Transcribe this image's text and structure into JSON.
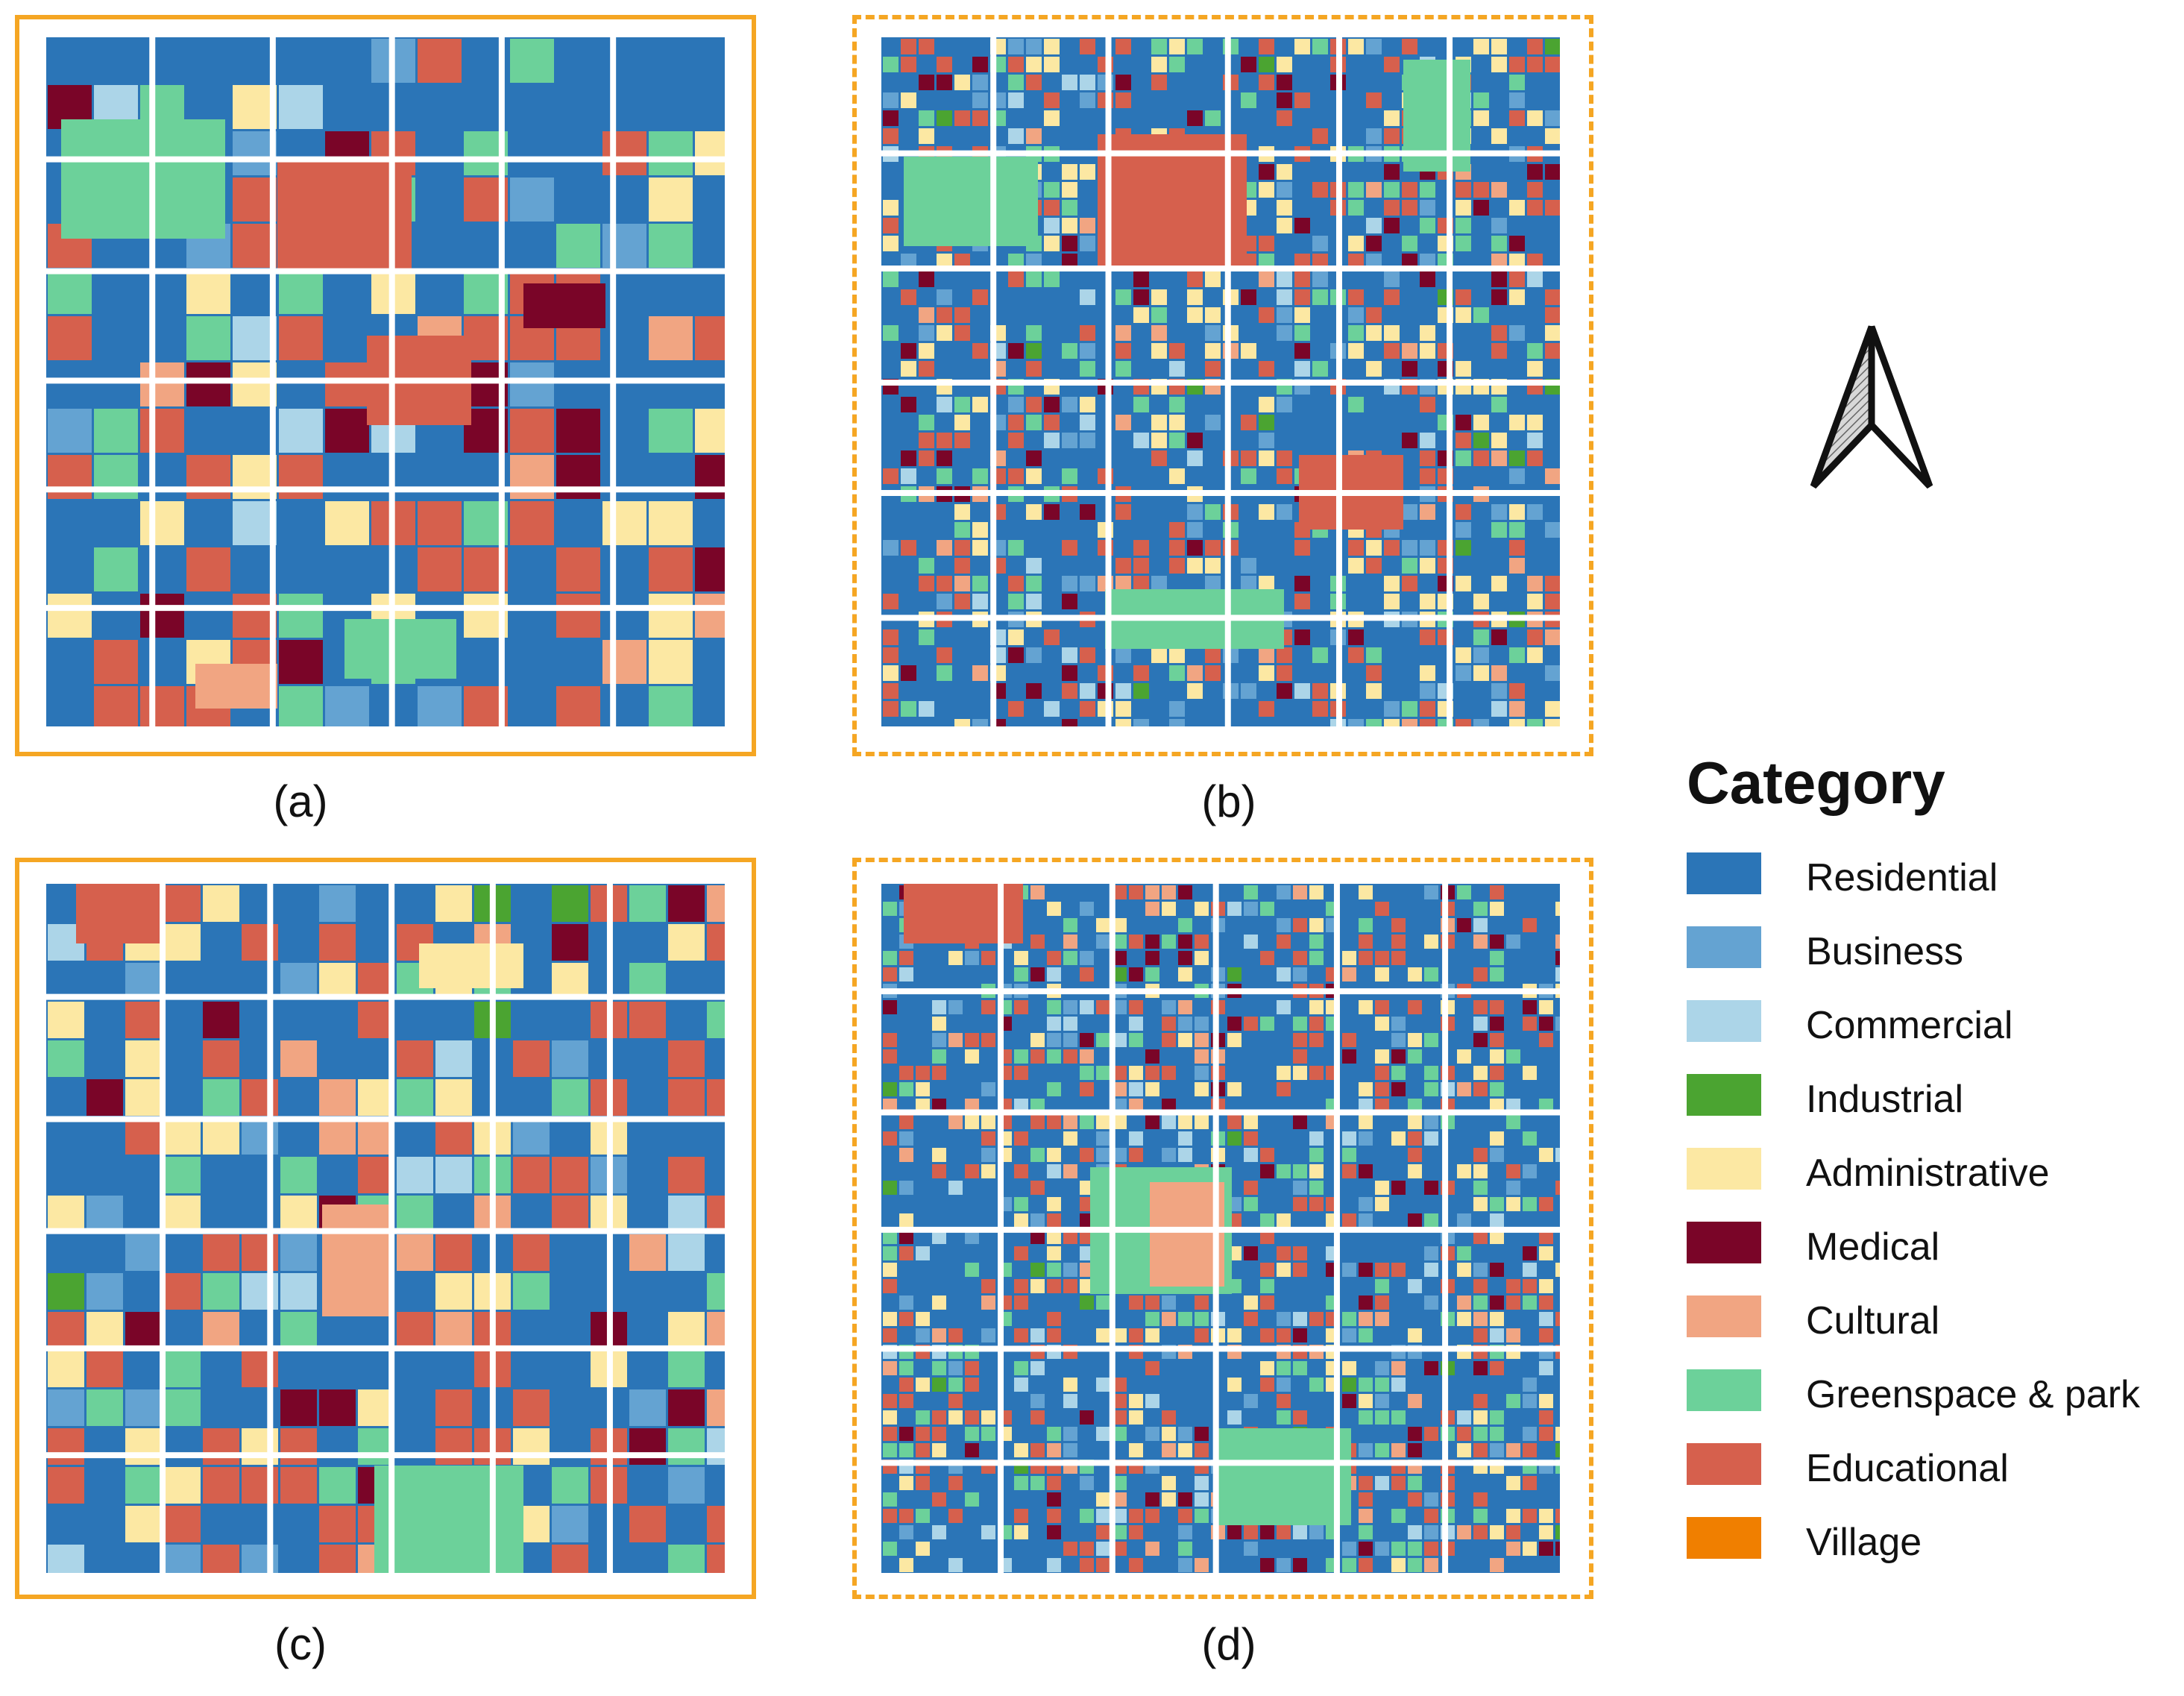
{
  "panels": [
    {
      "label": "(a)",
      "frame": "solid"
    },
    {
      "label": "(b)",
      "frame": "dashed"
    },
    {
      "label": "(c)",
      "frame": "solid"
    },
    {
      "label": "(d)",
      "frame": "dashed"
    }
  ],
  "legend": {
    "title": "Category",
    "items": [
      {
        "label": "Residential",
        "color": "#2b75b7"
      },
      {
        "label": "Business",
        "color": "#64a3d2"
      },
      {
        "label": "Commercial",
        "color": "#acd5e8"
      },
      {
        "label": "Industrial",
        "color": "#4ba431"
      },
      {
        "label": "Administrative",
        "color": "#fce8a3"
      },
      {
        "label": "Medical",
        "color": "#7a0528"
      },
      {
        "label": "Cultural",
        "color": "#f1a582"
      },
      {
        "label": "Greenspace & park",
        "color": "#6cd19a"
      },
      {
        "label": "Educational",
        "color": "#d6604d"
      },
      {
        "label": "Village",
        "color": "#f07f00"
      }
    ]
  },
  "north_arrow": {
    "icon": "north-arrow-icon"
  },
  "frame_color": "#f5a623"
}
